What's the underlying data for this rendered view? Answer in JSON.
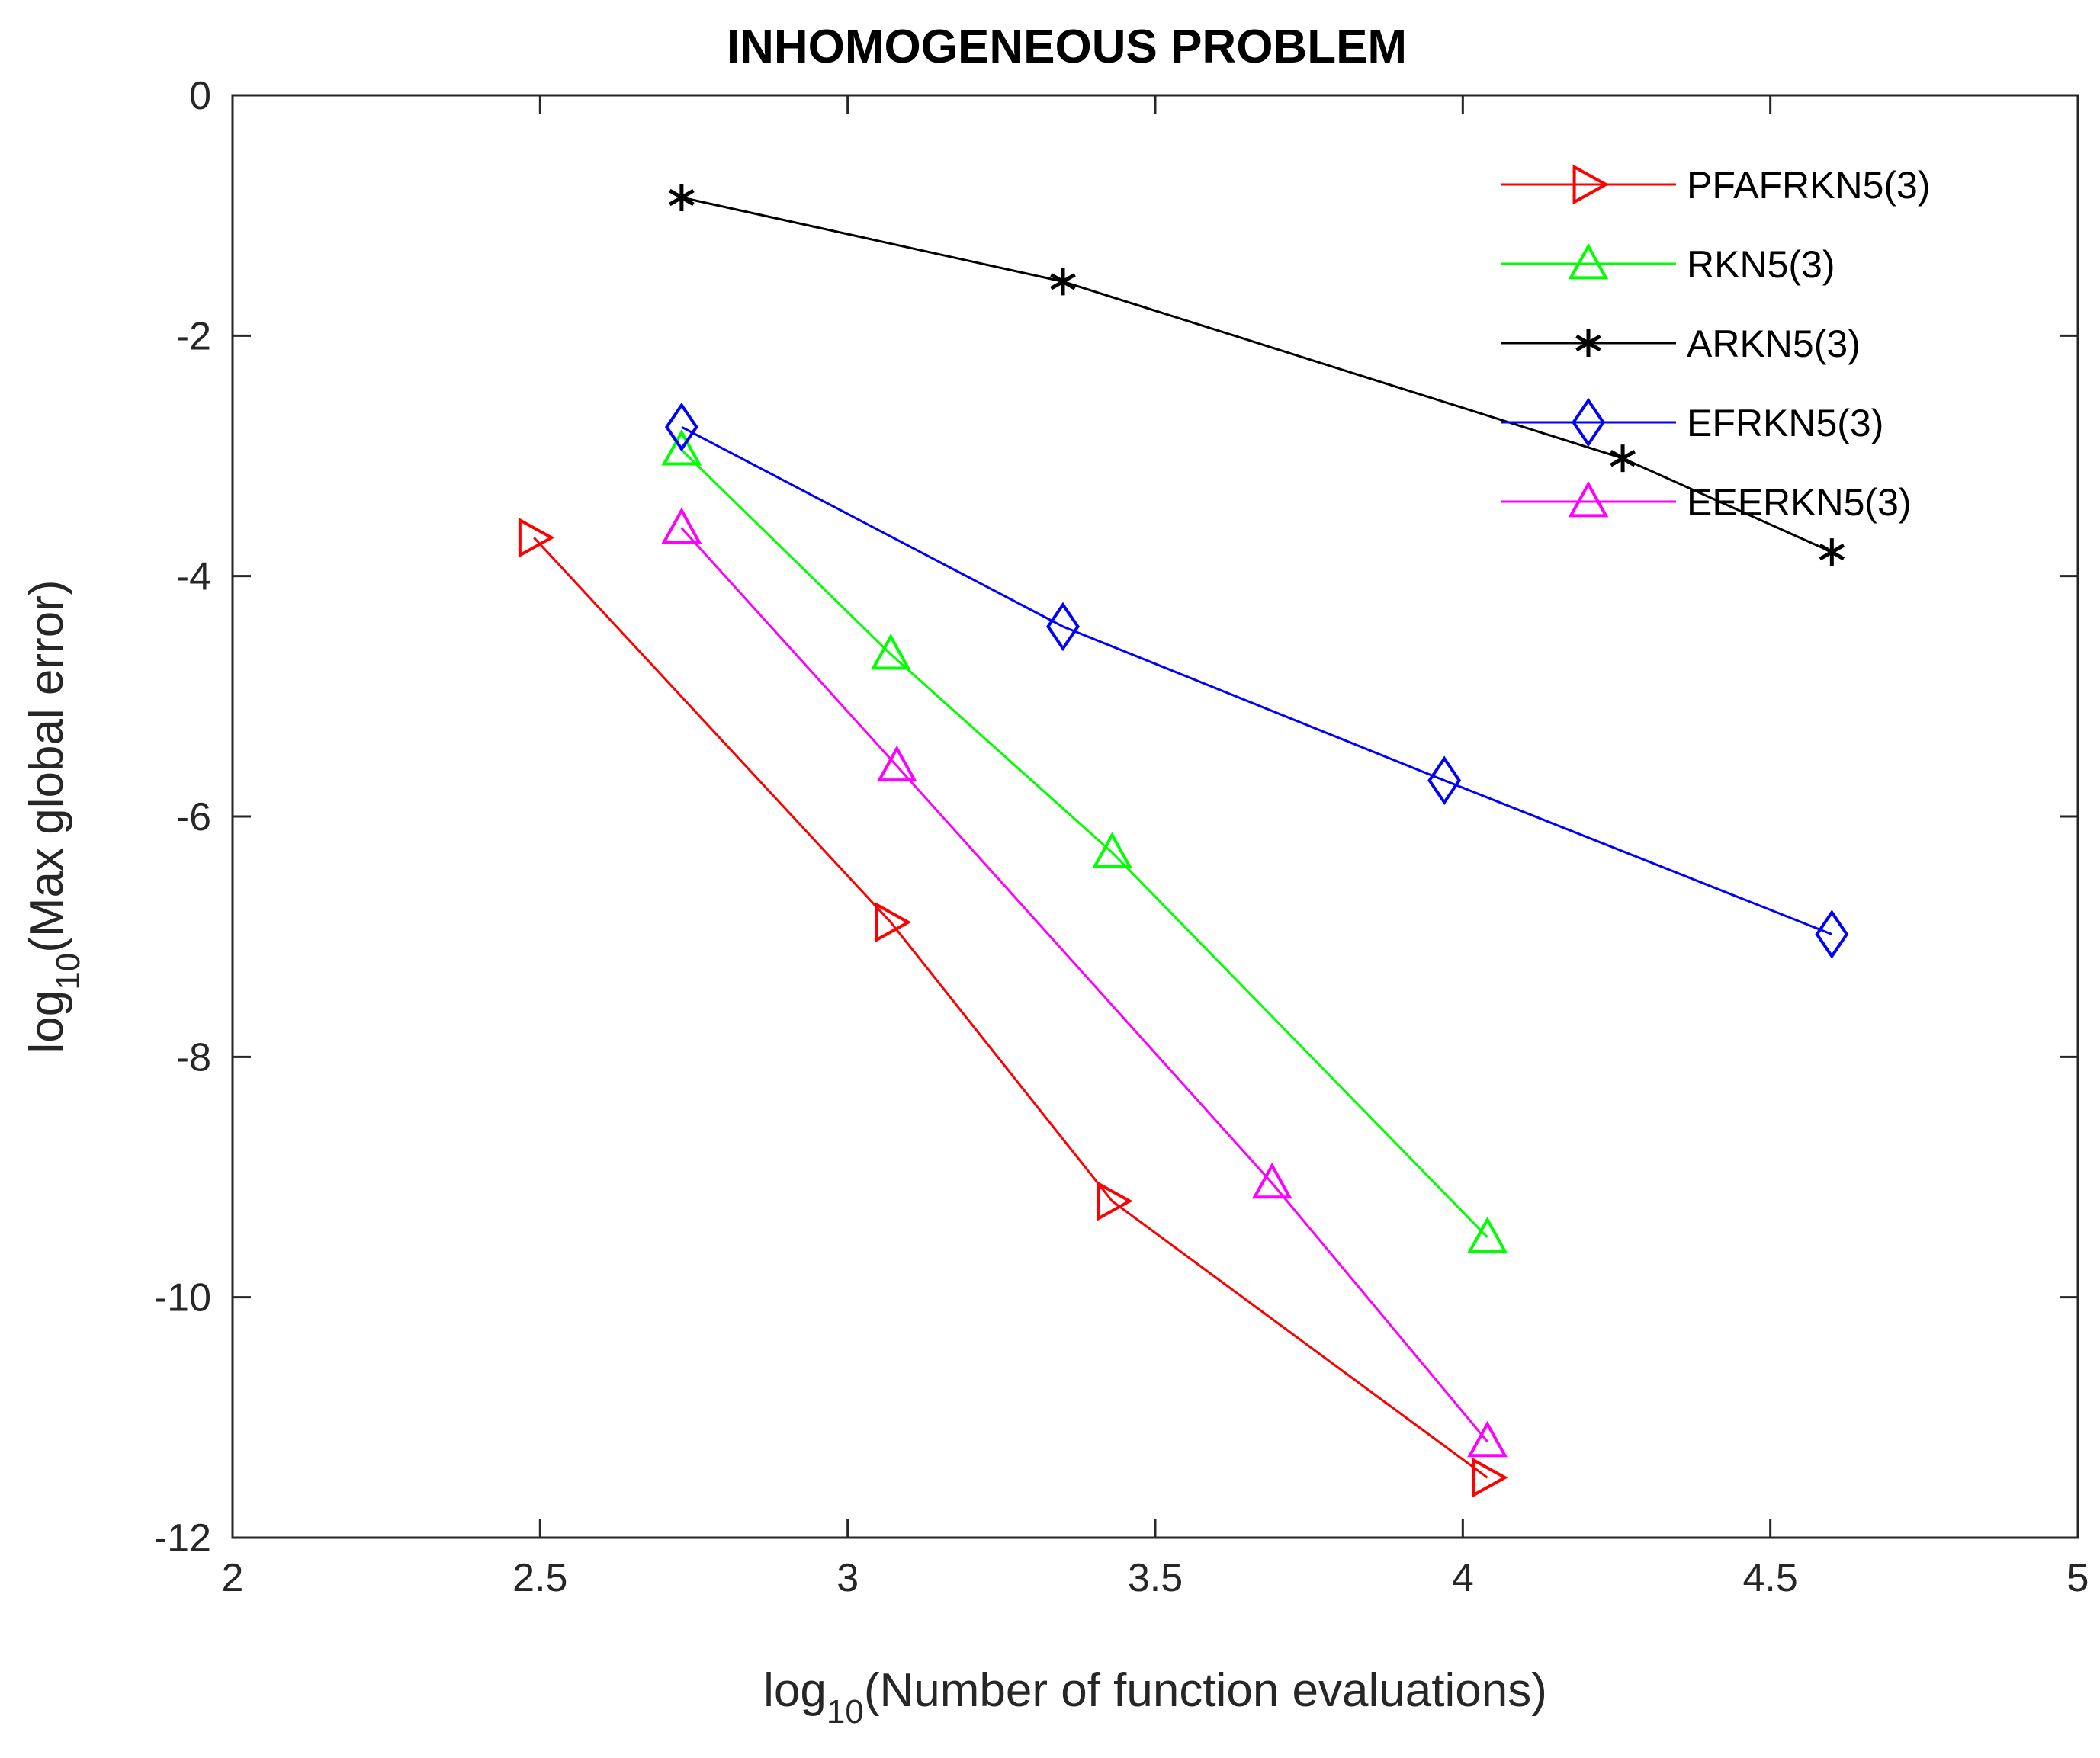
{
  "chart_data": {
    "type": "line",
    "title": "INHOMOGENEOUS PROBLEM",
    "xlabel": {
      "prefix": "log",
      "sub": "10",
      "rest": "(Number of function evaluations)"
    },
    "ylabel": {
      "prefix": "log",
      "sub": "10",
      "rest": "(Max global error)"
    },
    "xlim": [
      2,
      5
    ],
    "ylim": [
      -12,
      0
    ],
    "xticks": [
      2,
      2.5,
      3,
      3.5,
      4,
      4.5,
      5
    ],
    "xtick_labels": [
      "2",
      "2.5",
      "3",
      "3.5",
      "4",
      "4.5",
      "5"
    ],
    "yticks": [
      0,
      -2,
      -4,
      -6,
      -8,
      -10,
      -12
    ],
    "ytick_labels": [
      "0",
      "-2",
      "-4",
      "-6",
      "-8",
      "-10",
      "-12"
    ],
    "grid": false,
    "legend_position": "top-right",
    "series": [
      {
        "name": "PFAFRKN5(3)",
        "color": "#ff0000",
        "marker": "triangle-right",
        "x": [
          2.49,
          3.07,
          3.43,
          4.04
        ],
        "y": [
          -3.68,
          -6.88,
          -9.2,
          -11.5
        ]
      },
      {
        "name": "RKN5(3)",
        "color": "#00ff00",
        "marker": "triangle-up",
        "x": [
          2.73,
          3.07,
          3.43,
          4.04
        ],
        "y": [
          -2.95,
          -4.65,
          -6.3,
          -9.5
        ]
      },
      {
        "name": "ARKN5(3)",
        "color": "#000000",
        "marker": "asterisk",
        "x": [
          2.73,
          3.35,
          4.26,
          4.6
        ],
        "y": [
          -0.85,
          -1.55,
          -3.02,
          -3.8
        ]
      },
      {
        "name": "EFRKN5(3)",
        "color": "#0000ff",
        "marker": "diamond",
        "x": [
          2.73,
          3.35,
          3.97,
          4.6
        ],
        "y": [
          -2.76,
          -4.42,
          -5.7,
          -6.98
        ]
      },
      {
        "name": "EEERKN5(3)",
        "color": "#ff00ff",
        "marker": "triangle-up",
        "x": [
          2.73,
          3.08,
          3.69,
          4.04
        ],
        "y": [
          -3.6,
          -5.58,
          -9.05,
          -11.2
        ]
      }
    ]
  }
}
